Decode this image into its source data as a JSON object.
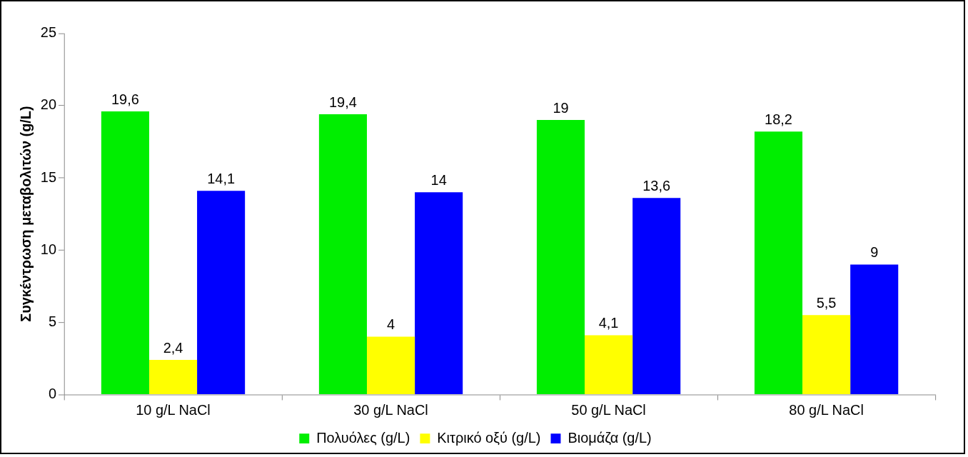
{
  "chart_data": {
    "type": "bar",
    "ylabel": "Συγκέντρωση μεταβολιτών (g/L)",
    "categories": [
      "10 g/L NaCl",
      "30 g/L NaCl",
      "50 g/L NaCl",
      "80 g/L NaCl"
    ],
    "series": [
      {
        "name": "Πολυόλες (g/L)",
        "color": "#00ee00",
        "values": [
          19.6,
          19.4,
          19,
          18.2
        ],
        "value_labels": [
          "19,6",
          "19,4",
          "19",
          "18,2"
        ]
      },
      {
        "name": "Κιτρικό οξύ (g/L)",
        "color": "#ffff00",
        "values": [
          2.4,
          4,
          4.1,
          5.5
        ],
        "value_labels": [
          "2,4",
          "4",
          "4,1",
          "5,5"
        ]
      },
      {
        "name": "Βιομάζα (g/L)",
        "color": "#0000ff",
        "values": [
          14.1,
          14,
          13.6,
          9
        ],
        "value_labels": [
          "14,1",
          "14",
          "13,6",
          "9"
        ]
      }
    ],
    "ylim": [
      0,
      25
    ],
    "yticks": [
      0,
      5,
      10,
      15,
      20,
      25
    ],
    "grid": false,
    "legend": "bottom"
  }
}
